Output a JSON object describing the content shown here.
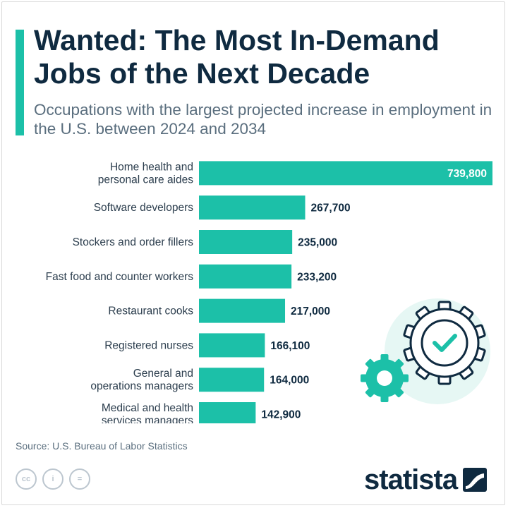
{
  "title": "Wanted: The Most In-Demand Jobs of the Next Decade",
  "subtitle": "Occupations with the largest projected increase in employment in the U.S. between 2024 and 2034",
  "source": "Source: U.S. Bureau of Labor Statistics",
  "brand": "statista",
  "colors": {
    "bar": "#1cc0a8",
    "title": "#0f2a40",
    "label": "#2b3d4d",
    "accent": "#1cc0a8"
  },
  "icons": [
    "cc-icon",
    "by-person-icon",
    "nd-equals-icon",
    "statista-logo-icon",
    "gear-check-icon",
    "small-gear-icon"
  ],
  "icon_glyphs": {
    "cc": "cc",
    "by": "i",
    "nd": "="
  },
  "chart_data": {
    "type": "bar",
    "orientation": "horizontal",
    "title": "Wanted: The Most In-Demand Jobs of the Next Decade",
    "categories": [
      "Home health and personal care aides",
      "Software developers",
      "Stockers and order fillers",
      "Fast food and counter workers",
      "Restaurant cooks",
      "Registered nurses",
      "General and operations managers",
      "Medical and health services managers"
    ],
    "category_lines": [
      [
        "Home health and",
        "personal care aides"
      ],
      [
        "Software developers"
      ],
      [
        "Stockers and order fillers"
      ],
      [
        "Fast food and counter workers"
      ],
      [
        "Restaurant cooks"
      ],
      [
        "Registered nurses"
      ],
      [
        "General and",
        "operations managers"
      ],
      [
        "Medical and health",
        "services managers"
      ]
    ],
    "values": [
      739800,
      267700,
      235000,
      233200,
      217000,
      166100,
      164000,
      142900
    ],
    "value_labels": [
      "739,800",
      "267,700",
      "235,000",
      "233,200",
      "217,000",
      "166,100",
      "164,000",
      "142,900"
    ],
    "xlim": [
      0,
      739800
    ],
    "grid": false,
    "legend": "none"
  }
}
